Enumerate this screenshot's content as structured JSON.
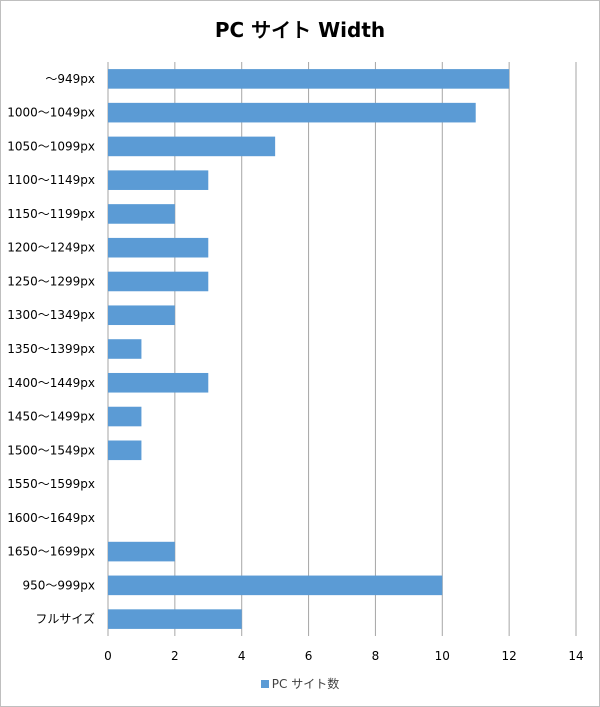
{
  "chart_data": {
    "type": "bar",
    "orientation": "horizontal",
    "title": "PC サイト Width",
    "xlabel": "",
    "ylabel": "",
    "categories": [
      "〜949px",
      "1000〜1049px",
      "1050〜1099px",
      "1100〜1149px",
      "1150〜1199px",
      "1200〜1249px",
      "1250〜1299px",
      "1300〜1349px",
      "1350〜1399px",
      "1400〜1449px",
      "1450〜1499px",
      "1500〜1549px",
      "1550〜1599px",
      "1600〜1649px",
      "1650〜1699px",
      "950〜999px",
      "フルサイズ"
    ],
    "series": [
      {
        "name": "PC サイト数",
        "values": [
          12,
          11,
          5,
          3,
          2,
          3,
          3,
          2,
          1,
          3,
          1,
          1,
          0,
          0,
          2,
          10,
          4
        ]
      }
    ],
    "xlim": [
      0,
      14
    ],
    "xticks": [
      0,
      2,
      4,
      6,
      8,
      10,
      12,
      14
    ],
    "grid": true,
    "legend_position": "bottom",
    "colors": {
      "bar": "#5b9bd5",
      "grid": "#a6a6a6",
      "border": "#bfbfbf"
    }
  }
}
